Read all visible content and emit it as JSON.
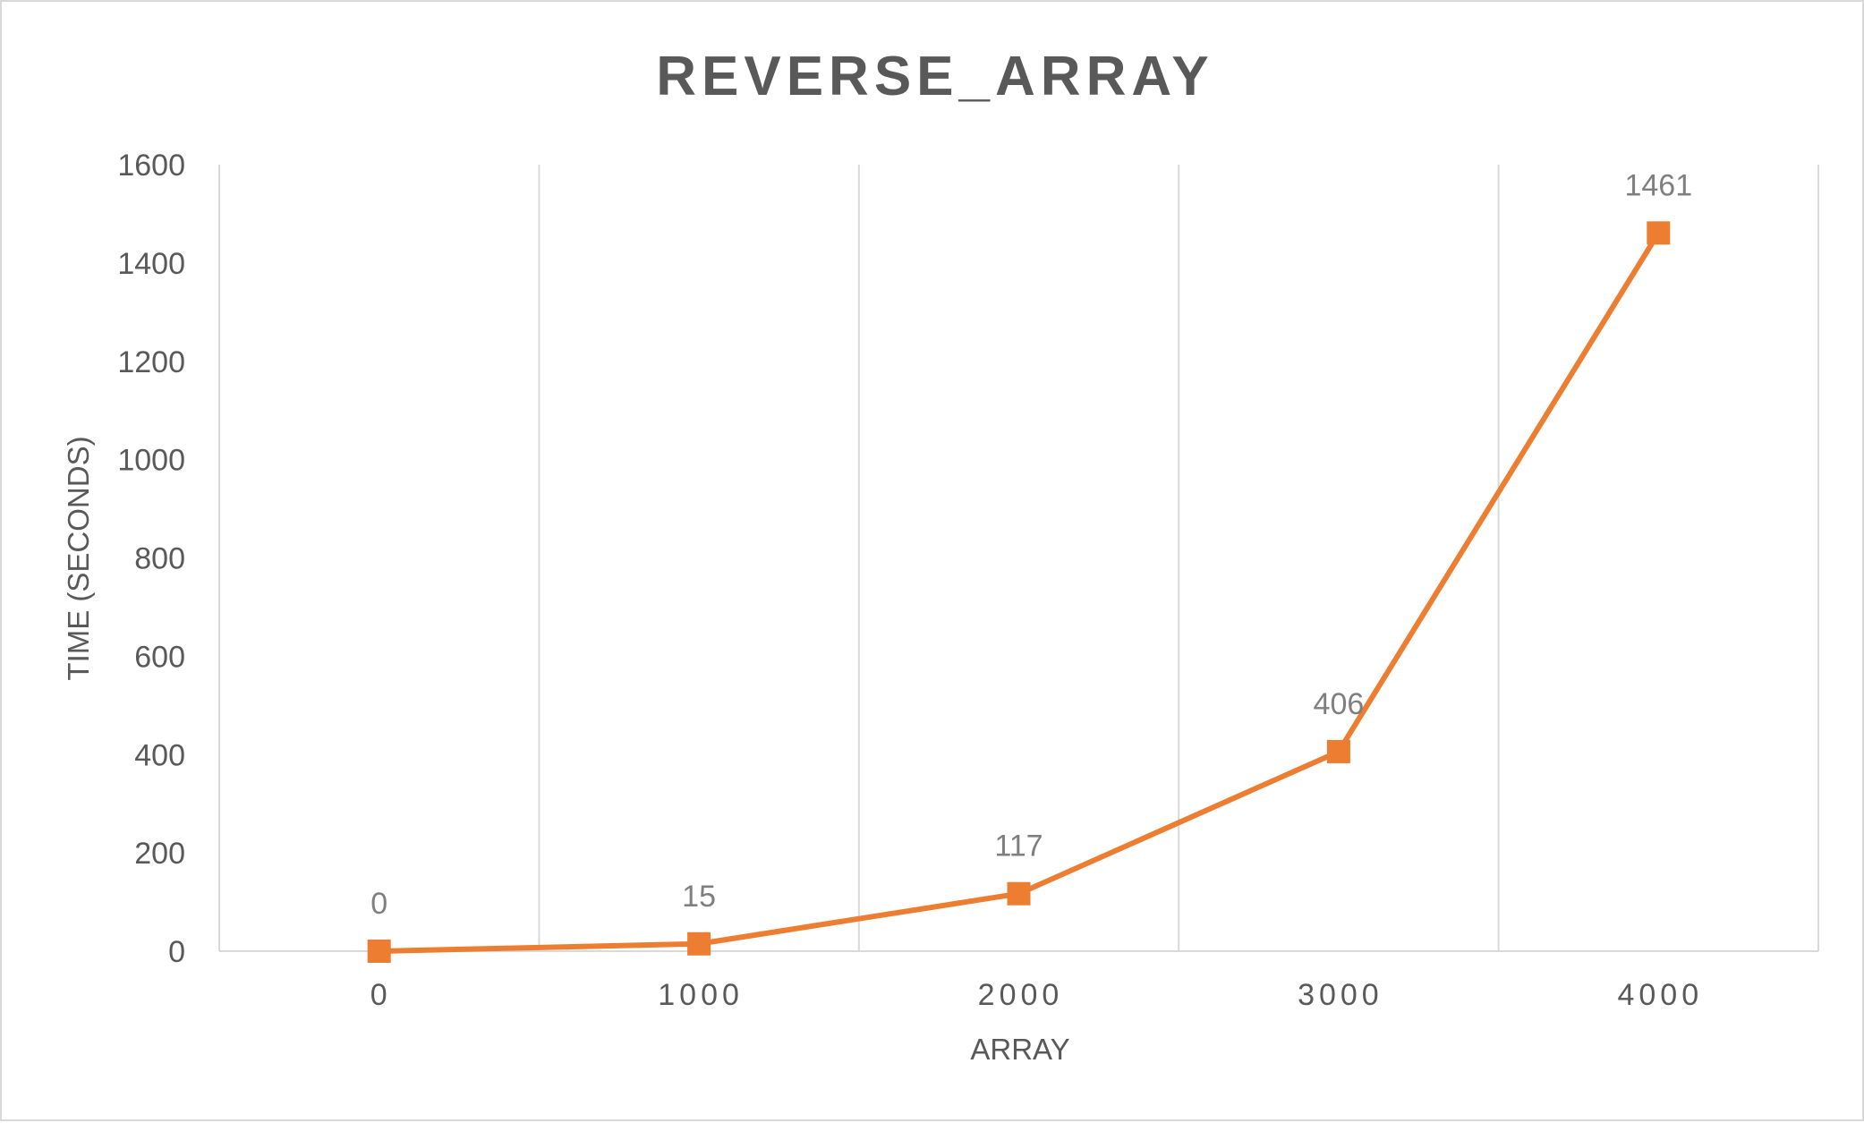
{
  "colors": {
    "series": "#ED7D31",
    "text": "#595959",
    "data_label": "#7F7F7F",
    "grid": "#D9D9D9"
  },
  "chart_data": {
    "type": "line",
    "title": "REVERSE_ARRAY",
    "xlabel": "ARRAY",
    "ylabel": "TIME (SECONDS)",
    "x": [
      0,
      1000,
      2000,
      3000,
      4000
    ],
    "x_tick_labels": [
      "0",
      "1000",
      "2000",
      "3000",
      "4000"
    ],
    "y_ticks": [
      0,
      200,
      400,
      600,
      800,
      1000,
      1200,
      1400,
      1600
    ],
    "y_tick_labels": [
      "0",
      "200",
      "400",
      "600",
      "800",
      "1000",
      "1200",
      "1400",
      "1600"
    ],
    "ylim": [
      0,
      1600
    ],
    "grid": "vertical",
    "legend": "none",
    "marker": "square",
    "series": [
      {
        "values": [
          0,
          15,
          117,
          406,
          1461
        ],
        "labels": [
          "0",
          "15",
          "117",
          "406",
          "1461"
        ]
      }
    ]
  }
}
